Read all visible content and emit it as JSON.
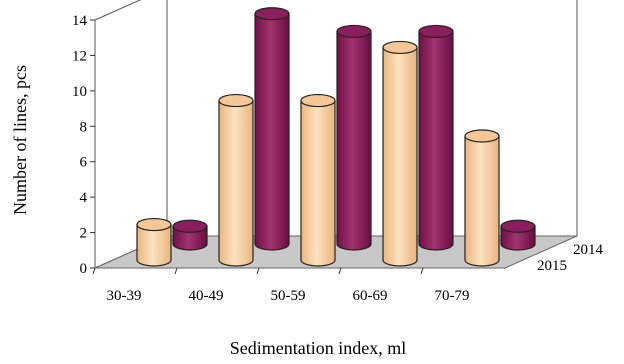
{
  "chart_data": {
    "type": "bar",
    "variant": "3d-cylinder",
    "xlabel": "Sedimentation index, ml",
    "ylabel": "Number of lines, pcs",
    "ylim": [
      0,
      14
    ],
    "yticks": [
      0,
      2,
      4,
      6,
      8,
      10,
      12,
      14
    ],
    "categories": [
      "30-39",
      "40-49",
      "50-59",
      "60-69",
      "70-79"
    ],
    "depth_labels": [
      "2015",
      "2014"
    ],
    "grid": false,
    "series": [
      {
        "name": "2015",
        "color": "#F9D0A0",
        "values": [
          2,
          9,
          9,
          12,
          7
        ]
      },
      {
        "name": "2014",
        "color": "#8E1F5E",
        "values": [
          1,
          13,
          12,
          12,
          1
        ]
      }
    ],
    "floor_color": "#C8C8C8"
  }
}
